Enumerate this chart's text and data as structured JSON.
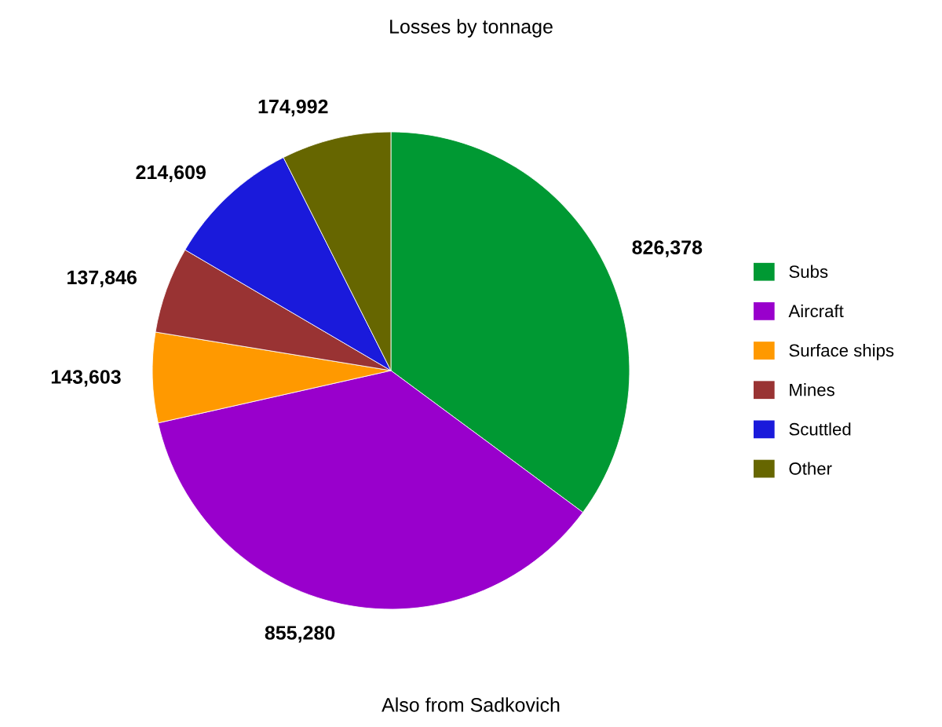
{
  "chart_data": {
    "type": "pie",
    "title": "Losses by tonnage",
    "categories": [
      "Subs",
      "Aircraft",
      "Surface ships",
      "Mines",
      "Scuttled",
      "Other"
    ],
    "values": [
      826378,
      855280,
      143603,
      137846,
      214609,
      174992
    ],
    "value_labels": [
      "826,378",
      "855,280",
      "143,603",
      "137,846",
      "214,609",
      "174,992"
    ],
    "colors": [
      "#009933",
      "#9900cc",
      "#ff9900",
      "#993333",
      "#1a1adb",
      "#666600"
    ],
    "legend": "right",
    "annotations": [
      "Also from Sadkovich"
    ]
  }
}
